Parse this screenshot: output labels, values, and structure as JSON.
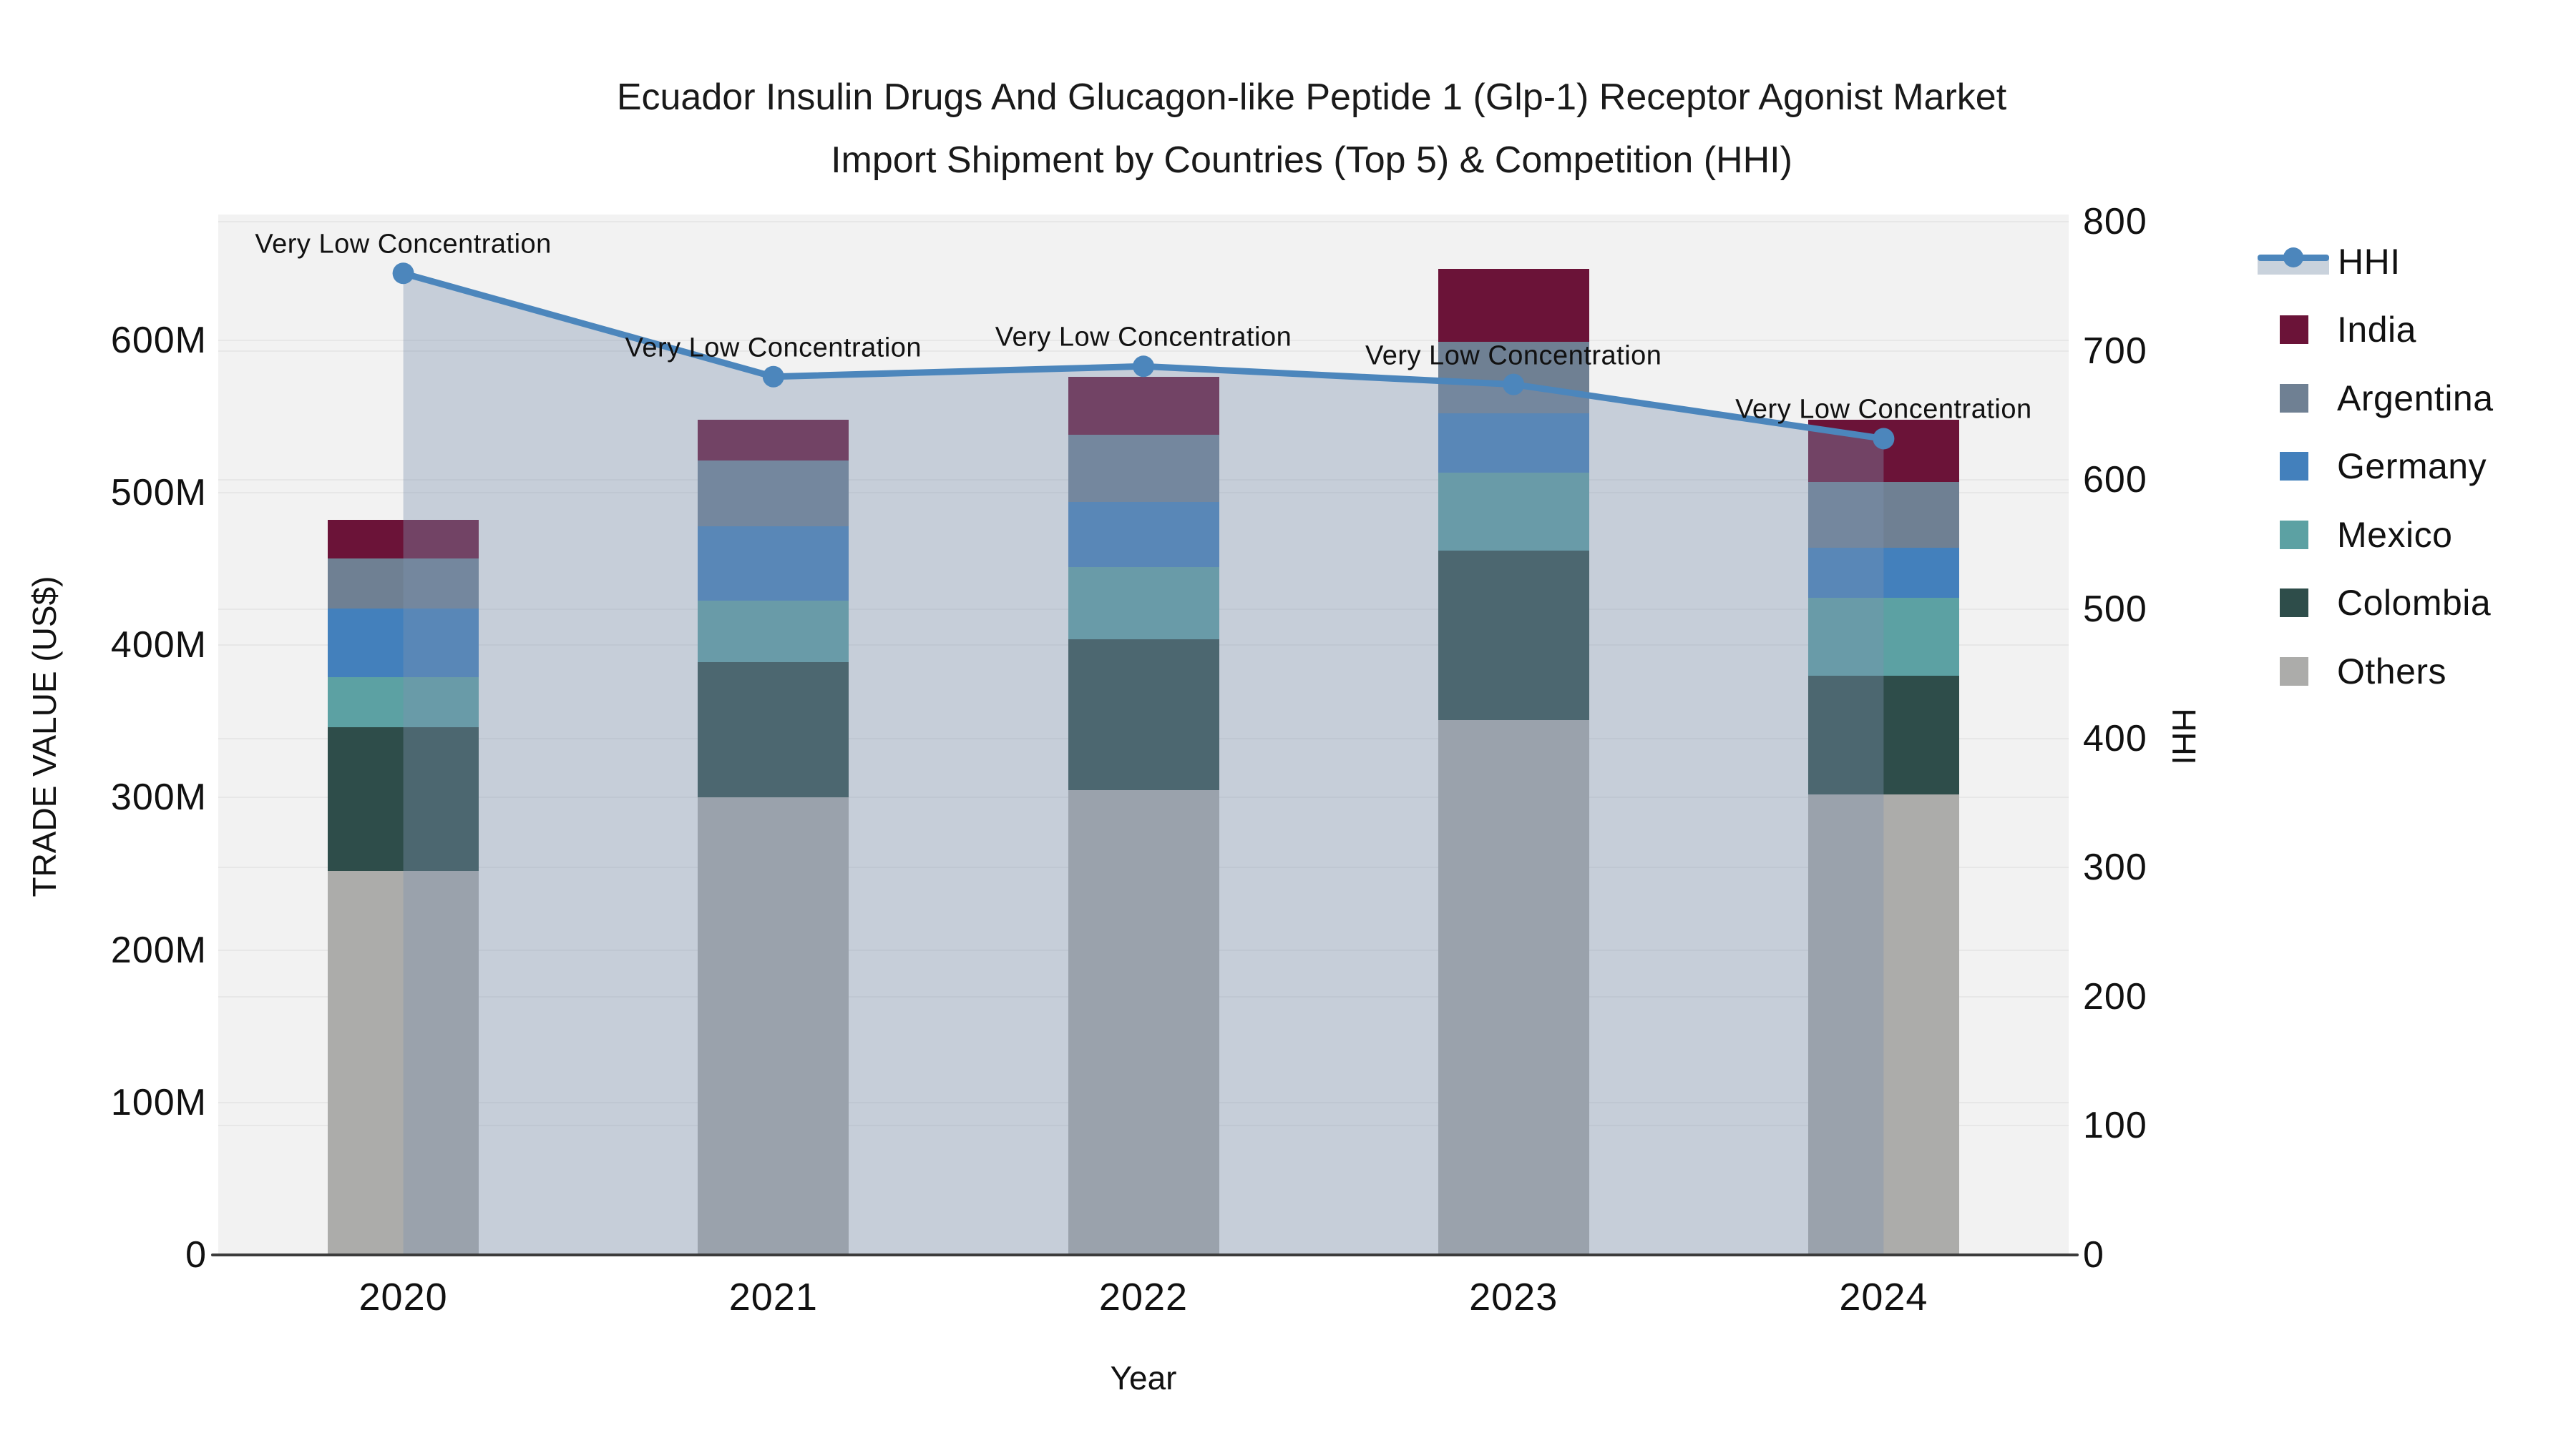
{
  "title": {
    "line1": "Ecuador Insulin Drugs And Glucagon-like Peptide 1 (Glp-1) Receptor Agonist Market",
    "line2": "Import Shipment by Countries (Top 5) & Competition (HHI)"
  },
  "chart_data": {
    "type": "combo",
    "subtype": "stacked-bar + line(secondary axis, area fill)",
    "categories": [
      "2020",
      "2021",
      "2022",
      "2023",
      "2024"
    ],
    "bar_series_bottom_to_top": [
      {
        "name": "Others",
        "color": "#ACACAA",
        "values": [
          252,
          300,
          305,
          351,
          302
        ]
      },
      {
        "name": "Colombia",
        "color": "#2E4D4A",
        "values": [
          94,
          89,
          99,
          111,
          78
        ]
      },
      {
        "name": "Mexico",
        "color": "#5CA1A3",
        "values": [
          33,
          40,
          47,
          51,
          51
        ]
      },
      {
        "name": "Germany",
        "color": "#4380BC",
        "values": [
          45,
          49,
          43,
          39,
          33
        ]
      },
      {
        "name": "Argentina",
        "color": "#6F8093",
        "values": [
          33,
          43,
          44,
          47,
          43
        ]
      },
      {
        "name": "India",
        "color": "#6B1338",
        "values": [
          25,
          27,
          38,
          48,
          41
        ]
      }
    ],
    "bar_totals_millions": [
      482,
      548,
      576,
      647,
      548
    ],
    "line_series": {
      "name": "HHI",
      "axis": "right",
      "values": [
        760,
        680,
        688,
        674,
        632
      ],
      "color": "#4C86BC",
      "area_fill": "rgba(125,146,175,0.38)"
    },
    "annotations": [
      {
        "category": "2020",
        "text": "Very Low Concentration"
      },
      {
        "category": "2021",
        "text": "Very Low Concentration"
      },
      {
        "category": "2022",
        "text": "Very Low Concentration"
      },
      {
        "category": "2023",
        "text": "Very Low Concentration"
      },
      {
        "category": "2024",
        "text": "Very Low Concentration"
      }
    ],
    "y_left": {
      "title": "TRADE VALUE (US$)",
      "unit": "millions US$",
      "range": [
        0,
        682
      ],
      "tick_values": [
        0,
        100,
        200,
        300,
        400,
        500,
        600
      ],
      "tick_labels": [
        "0",
        "100M",
        "200M",
        "300M",
        "400M",
        "500M",
        "600M"
      ]
    },
    "y_right": {
      "title": "HHI",
      "range": [
        0,
        805
      ],
      "tick_values": [
        0,
        100,
        200,
        300,
        400,
        500,
        600,
        700,
        800
      ],
      "tick_labels": [
        "0",
        "100",
        "200",
        "300",
        "400",
        "500",
        "600",
        "700",
        "800"
      ]
    },
    "x_title": "Year",
    "grid": true,
    "plot_background": "#f2f2f2",
    "legend_position": "right",
    "legend_order": [
      "HHI",
      "India",
      "Argentina",
      "Germany",
      "Mexico",
      "Colombia",
      "Others"
    ]
  }
}
